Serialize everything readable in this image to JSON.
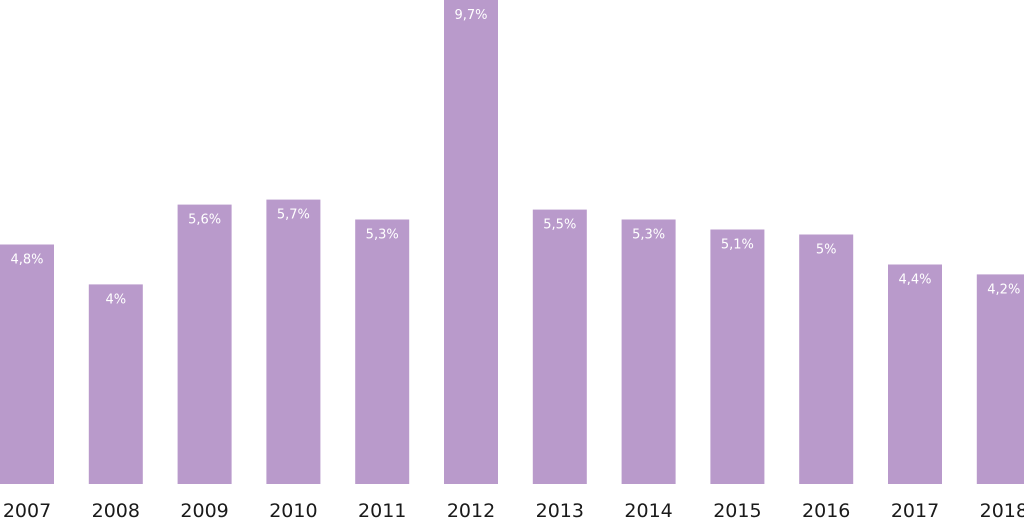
{
  "chart_data": {
    "type": "bar",
    "categories": [
      "2007",
      "2008",
      "2009",
      "2010",
      "2011",
      "2012",
      "2013",
      "2014",
      "2015",
      "2016",
      "2017",
      "2018"
    ],
    "values": [
      4.8,
      4.0,
      5.6,
      5.7,
      5.3,
      9.7,
      5.5,
      5.3,
      5.1,
      5.0,
      4.4,
      4.2
    ],
    "data_labels": [
      "4,8%",
      "4%",
      "5,6%",
      "5,7%",
      "5,3%",
      "9,7%",
      "5,5%",
      "5,3%",
      "5,1%",
      "5%",
      "4,4%",
      "4,2%"
    ],
    "title": "",
    "xlabel": "",
    "ylabel": "",
    "ylim": [
      0,
      9.7
    ],
    "grid": false,
    "bar_color": "#b99acb"
  }
}
